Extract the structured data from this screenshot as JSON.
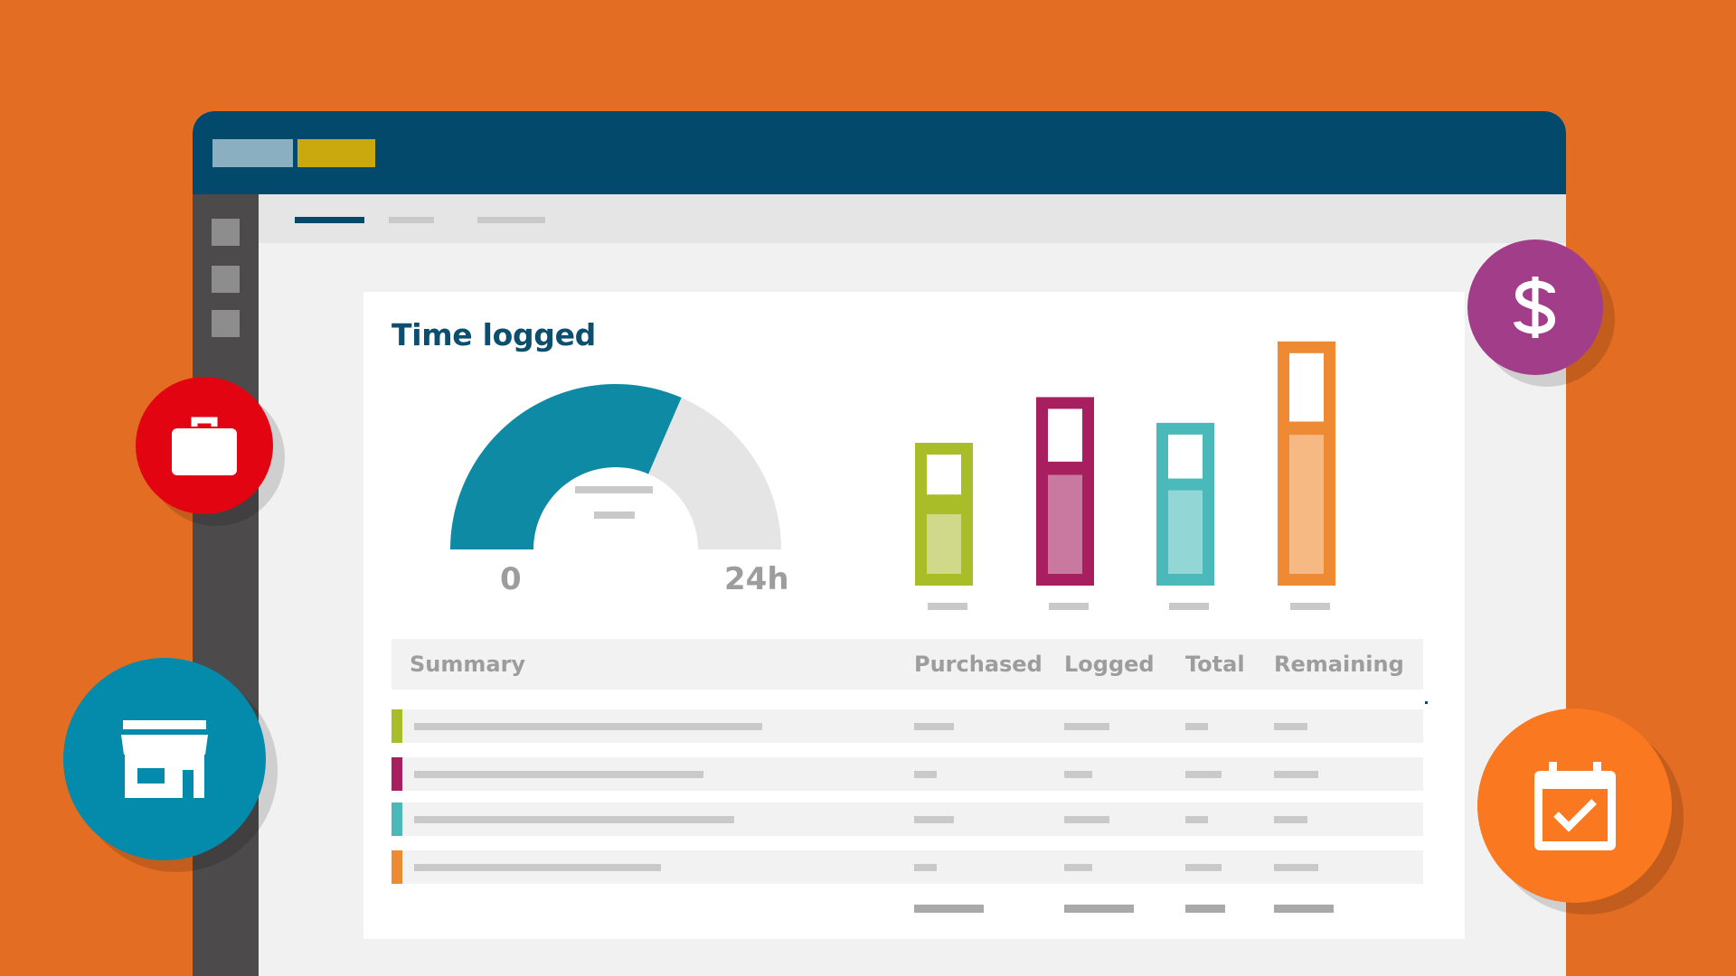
{
  "page": {
    "background_color": "#E36D22"
  },
  "window": {
    "titlebar_color": "#02496B",
    "sidebar_color": "#4C4A4A"
  },
  "card": {
    "title": "Time logged"
  },
  "gauge": {
    "min_label": "0",
    "max_label": "24h",
    "value_fraction": 0.63,
    "fill_color": "#0E8AA4",
    "track_color": "#E5E5E5"
  },
  "chart_data": {
    "type": "bar",
    "categories": [
      "",
      "",
      "",
      ""
    ],
    "series": [
      {
        "values": [
          100,
          132,
          114,
          171
        ]
      }
    ],
    "segments_fraction_light": [
      0.5,
      0.6,
      0.6,
      0.63
    ],
    "colors": [
      "#A8BD27",
      "#A71F5F",
      "#4BB8B9",
      "#EF8A34"
    ],
    "light_colors": [
      "#D0D98A",
      "#C978A0",
      "#92D6D6",
      "#F7B983"
    ],
    "ylim": [
      0,
      190
    ],
    "xlabel": "",
    "ylabel": ""
  },
  "table": {
    "headers": {
      "summary": "Summary",
      "purchased": "Purchased",
      "logged": "Logged",
      "total": "Total",
      "remaining": "Remaining"
    },
    "row_colors": [
      "#A8BD27",
      "#A71F5F",
      "#4BB8B9",
      "#EF8A34"
    ]
  },
  "floating_icons": {
    "briefcase": {
      "icon": "briefcase-icon",
      "color": "#E30411"
    },
    "store": {
      "icon": "store-icon",
      "color": "#048AAA"
    },
    "dollar": {
      "icon": "dollar-icon",
      "color": "#A23D8A"
    },
    "calendar": {
      "icon": "calendar-check-icon",
      "color": "#FA7820"
    }
  }
}
